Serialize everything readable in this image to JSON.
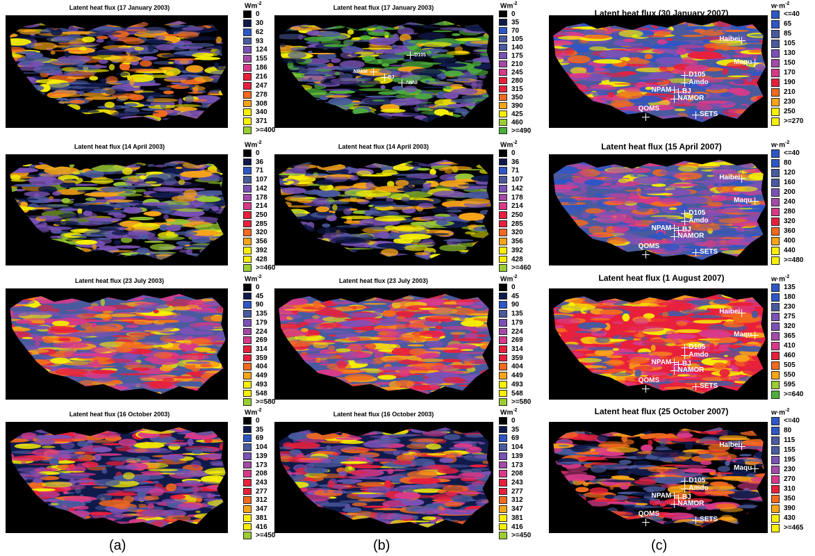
{
  "unit_a": "Wm",
  "unit_c": "w·m",
  "unit_exp": "-2",
  "captions": [
    "(a)",
    "(b)",
    "(c)"
  ],
  "colors": {
    "background": "#000000",
    "black": "#000000",
    "navy": "#101a4a",
    "blue": "#2e56c6",
    "slate": "#4a5a9e",
    "purple": "#7a52b6",
    "violet": "#a44aa8",
    "magenta": "#d83a8a",
    "red": "#e8203c",
    "orange": "#f26a1e",
    "amber": "#f8a418",
    "yellow": "#f8f000",
    "lime": "#9acd32",
    "green": "#4caf3c"
  },
  "stations_b": [
    "D105",
    "NPAM",
    "BJ",
    "ANNI"
  ],
  "stations_c": [
    "Haibei",
    "Maqu",
    "D105",
    "Amdo",
    "NPAM",
    "BJ",
    "NAMOR",
    "QOMS",
    "SETS"
  ],
  "panels_a": [
    {
      "title": "Latent heat flux (17 January 2003)",
      "legend": [
        "0",
        "30",
        "62",
        "93",
        "124",
        "155",
        "186",
        "216",
        "247",
        "278",
        "308",
        "340",
        "371",
        ">=400"
      ]
    },
    {
      "title": "Latent heat flux (14 April 2003)",
      "legend": [
        "0",
        "36",
        "71",
        "107",
        "142",
        "178",
        "214",
        "250",
        "285",
        "320",
        "356",
        "392",
        "428",
        ">=460"
      ]
    },
    {
      "title": "Latent heat flux (23 July 2003)",
      "legend": [
        "0",
        "45",
        "90",
        "135",
        "179",
        "224",
        "269",
        "314",
        "359",
        "404",
        "449",
        "493",
        "548",
        ">=580"
      ]
    },
    {
      "title": "Latent heat flux (16 October 2003)",
      "legend": [
        "0",
        "35",
        "69",
        "104",
        "139",
        "173",
        "208",
        "243",
        "277",
        "312",
        "347",
        "381",
        "416",
        ">=450"
      ]
    }
  ],
  "panels_b": [
    {
      "title": "Latent heat flux (17 January 2003)",
      "legend": [
        "0",
        "35",
        "70",
        "105",
        "140",
        "175",
        "210",
        "245",
        "280",
        "315",
        "350",
        "390",
        "425",
        "460",
        ">=490"
      ]
    },
    {
      "title": "Latent heat flux (14 April 2003)",
      "legend": [
        "0",
        "36",
        "71",
        "107",
        "142",
        "178",
        "214",
        "250",
        "285",
        "320",
        "356",
        "392",
        "428",
        ">=460"
      ]
    },
    {
      "title": "Latent heat flux (23 July 2003)",
      "legend": [
        "0",
        "45",
        "90",
        "135",
        "179",
        "224",
        "269",
        "314",
        "359",
        "404",
        "449",
        "493",
        "548",
        ">=580"
      ]
    },
    {
      "title": "Latent heat flux (16 October 2003)",
      "legend": [
        "0",
        "35",
        "69",
        "104",
        "139",
        "173",
        "208",
        "243",
        "277",
        "312",
        "347",
        "381",
        "416",
        ">=450"
      ]
    }
  ],
  "panels_c": [
    {
      "title": "Latent heat flux (30 January 2007)",
      "legend": [
        "<=40",
        "65",
        "85",
        "105",
        "130",
        "150",
        "170",
        "190",
        "210",
        "230",
        "250",
        ">=270"
      ]
    },
    {
      "title": "Latent heat flux (15 April 2007)",
      "legend": [
        "<=40",
        "80",
        "120",
        "160",
        "200",
        "240",
        "280",
        "320",
        "360",
        "400",
        "440",
        ">=480"
      ]
    },
    {
      "title": "Latent heat flux (1 August 2007)",
      "legend": [
        "135",
        "180",
        "230",
        "275",
        "320",
        "365",
        "410",
        "460",
        "505",
        "550",
        "595",
        ">=640"
      ]
    },
    {
      "title": "Latent heat flux (25 October 2007)",
      "legend": [
        "<=40",
        "80",
        "115",
        "155",
        "195",
        "230",
        "270",
        "310",
        "350",
        "390",
        "430",
        ">=465"
      ]
    }
  ]
}
